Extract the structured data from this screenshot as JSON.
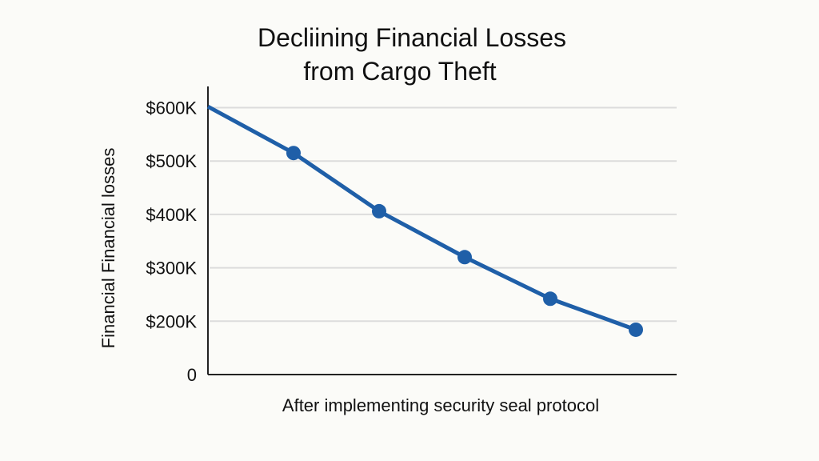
{
  "chart_data": {
    "type": "line",
    "title_lines": [
      "Decliining Financial Losses",
      "from Cargo Theft"
    ],
    "xlabel": "After implementing security seal protocol",
    "ylabel": "Financial Financial losses",
    "x": [
      0,
      1,
      2,
      3,
      4,
      5
    ],
    "series": [
      {
        "values": [
          602000,
          515000,
          406000,
          320000,
          242000,
          184000
        ],
        "markers": [
          false,
          true,
          true,
          true,
          true,
          true
        ]
      }
    ],
    "ylim": [
      100000,
      640000
    ],
    "yticks": [
      {
        "value": 600000,
        "label": "$600K"
      },
      {
        "value": 500000,
        "label": "$500K"
      },
      {
        "value": 400000,
        "label": "$400K"
      },
      {
        "value": 300000,
        "label": "$300K"
      },
      {
        "value": 200000,
        "label": "$200K"
      },
      {
        "value": null,
        "label": "0"
      }
    ],
    "grid": true,
    "legend": "none",
    "colors": {
      "line": "#1f5fa8",
      "grid": "#dcdcdc",
      "axis": "#222222"
    }
  }
}
